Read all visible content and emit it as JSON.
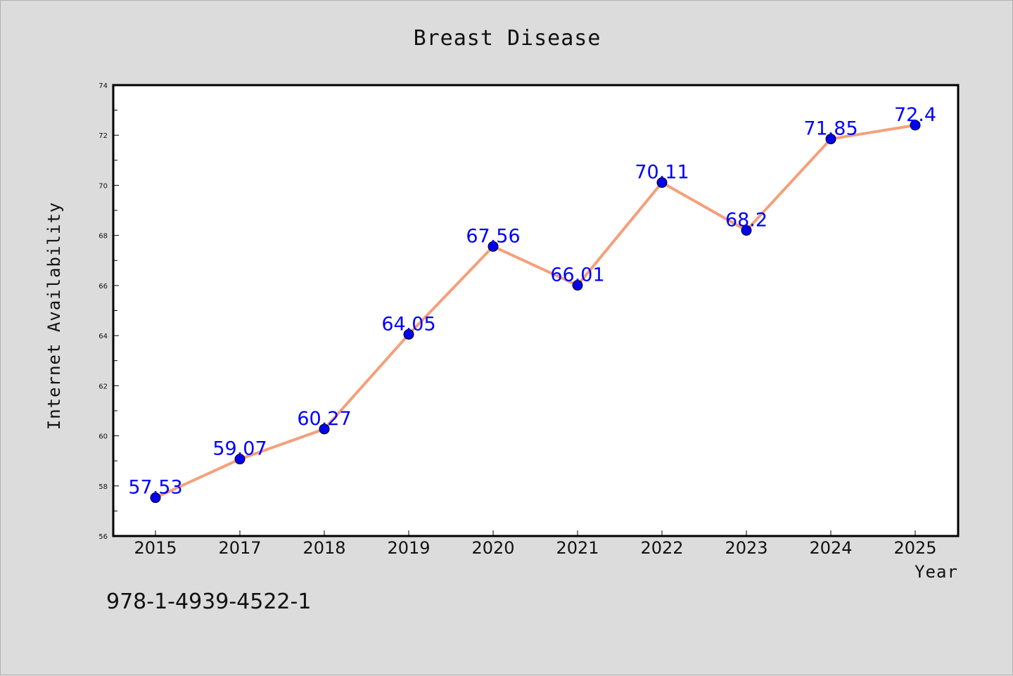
{
  "chart_data": {
    "type": "line",
    "title": "Breast Disease",
    "xlabel": "Year",
    "ylabel": "Internet Availability",
    "categories": [
      "2015",
      "2017",
      "2018",
      "2019",
      "2020",
      "2021",
      "2022",
      "2023",
      "2024",
      "2025"
    ],
    "series": [
      {
        "values": [
          57.53,
          59.07,
          60.27,
          64.05,
          67.56,
          66.01,
          70.11,
          68.2,
          71.85,
          72.4
        ],
        "line_color": "#f4a07a",
        "marker_color": "#0000ee",
        "label_color": "#0000ff"
      }
    ],
    "ylim": [
      56,
      74
    ],
    "yticks": [
      "56",
      "58",
      "60",
      "62",
      "64",
      "66",
      "68",
      "70",
      "72",
      "74"
    ],
    "data_labels": [
      "57.53",
      "59.07",
      "60.27",
      "64.05",
      "67.56",
      "66.01",
      "70.11",
      "68.2",
      "71.85",
      "72.4"
    ],
    "grid": false
  },
  "footer_text": "978-1-4939-4522-1"
}
